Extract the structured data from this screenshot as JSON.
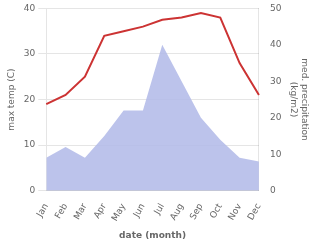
{
  "chart_data": {
    "type": "line",
    "xlabel": "date (month)",
    "ylabel": "max temp (C)",
    "y2label": "med. precipitation\n(kg/m2)",
    "categories": [
      "Jan",
      "Feb",
      "Mar",
      "Apr",
      "May",
      "Jun",
      "Jul",
      "Aug",
      "Sep",
      "Oct",
      "Nov",
      "Dec"
    ],
    "series": [
      {
        "type": "line",
        "color": "#cc3333",
        "values": [
          19,
          21,
          25,
          34,
          35,
          36,
          37.5,
          38,
          39,
          38,
          28,
          21
        ]
      },
      {
        "type": "area",
        "color": "#b0b8e8",
        "axis": "y2",
        "values": [
          9,
          12,
          9,
          15,
          22,
          22,
          40,
          30,
          20,
          14,
          9,
          8
        ]
      }
    ],
    "ylim": [
      0,
      40
    ],
    "yticks": [
      0,
      10,
      20,
      30,
      40
    ],
    "y2lim": [
      0,
      50
    ],
    "y2ticks": [
      0,
      10,
      20,
      30,
      40,
      50
    ],
    "grid": true
  }
}
